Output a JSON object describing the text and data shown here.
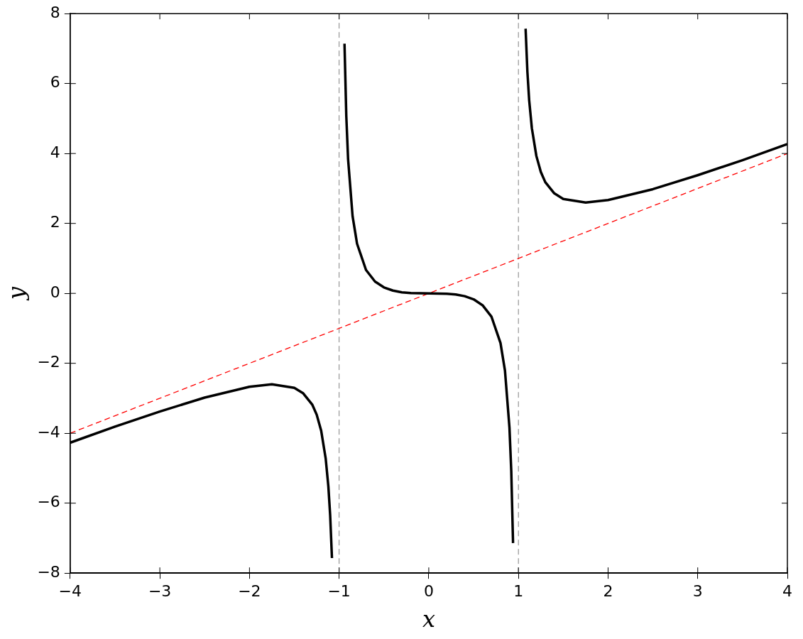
{
  "chart_data": {
    "type": "line",
    "xlabel": "x",
    "ylabel": "y",
    "marker": "none",
    "legend": false,
    "grid": false,
    "xlim": [
      -4,
      4
    ],
    "ylim": [
      -8,
      8
    ],
    "xticks": [
      {
        "value": -4,
        "label": "−4"
      },
      {
        "value": -3,
        "label": "−3"
      },
      {
        "value": -2,
        "label": "−2"
      },
      {
        "value": -1,
        "label": "−1"
      },
      0,
      1,
      2,
      3,
      4
    ],
    "yticks": [
      {
        "value": -8,
        "label": "−8"
      },
      {
        "value": -6,
        "label": "−6"
      },
      {
        "value": -4,
        "label": "−4"
      },
      {
        "value": -2,
        "label": "−2"
      },
      0,
      2,
      4,
      6,
      8
    ],
    "series": [
      {
        "color": "#000000",
        "line_style": "solid",
        "x": [
          -4,
          -3.5,
          -3,
          -2.5,
          -2,
          -1.75,
          -1.5,
          -1.4,
          -1.3,
          -1.25,
          -1.2,
          -1.15,
          -1.12,
          -1.1,
          -1.08
        ],
        "values": [
          -4.27,
          -3.81,
          -3.38,
          -2.98,
          -2.67,
          -2.6,
          -2.7,
          -2.86,
          -3.18,
          -3.47,
          -3.93,
          -4.72,
          -5.52,
          -6.34,
          -7.57
        ]
      },
      {
        "color": "#000000",
        "line_style": "solid",
        "x": [
          -0.94,
          -0.92,
          -0.9,
          -0.85,
          -0.8,
          -0.7,
          -0.6,
          -0.5,
          -0.4,
          -0.3,
          -0.2,
          0,
          0.2,
          0.3,
          0.4,
          0.5,
          0.6,
          0.7,
          0.8,
          0.85,
          0.9,
          0.92,
          0.94
        ],
        "values": [
          7.14,
          5.07,
          3.84,
          2.21,
          1.42,
          0.67,
          0.34,
          0.17,
          0.08,
          0.03,
          0.01,
          0,
          -0.01,
          -0.03,
          -0.08,
          -0.17,
          -0.34,
          -0.67,
          -1.42,
          -2.21,
          -3.84,
          -5.07,
          -7.14
        ]
      },
      {
        "color": "#000000",
        "line_style": "solid",
        "x": [
          1.08,
          1.1,
          1.12,
          1.15,
          1.2,
          1.25,
          1.3,
          1.4,
          1.5,
          1.75,
          2,
          2.5,
          3,
          3.5,
          4
        ],
        "values": [
          7.57,
          6.34,
          5.52,
          4.72,
          3.93,
          3.47,
          3.18,
          2.86,
          2.7,
          2.6,
          2.67,
          2.98,
          3.38,
          3.81,
          4.27
        ]
      },
      {
        "color": "#ff0000",
        "line_style": "dashed",
        "x": [
          -4,
          4
        ],
        "values": [
          -4,
          4
        ]
      }
    ],
    "ref_lines": [
      {
        "axis": "x",
        "value": -1,
        "color": "#808080",
        "line_style": "dashed"
      },
      {
        "axis": "x",
        "value": 1,
        "color": "#808080",
        "line_style": "dashed"
      }
    ]
  }
}
